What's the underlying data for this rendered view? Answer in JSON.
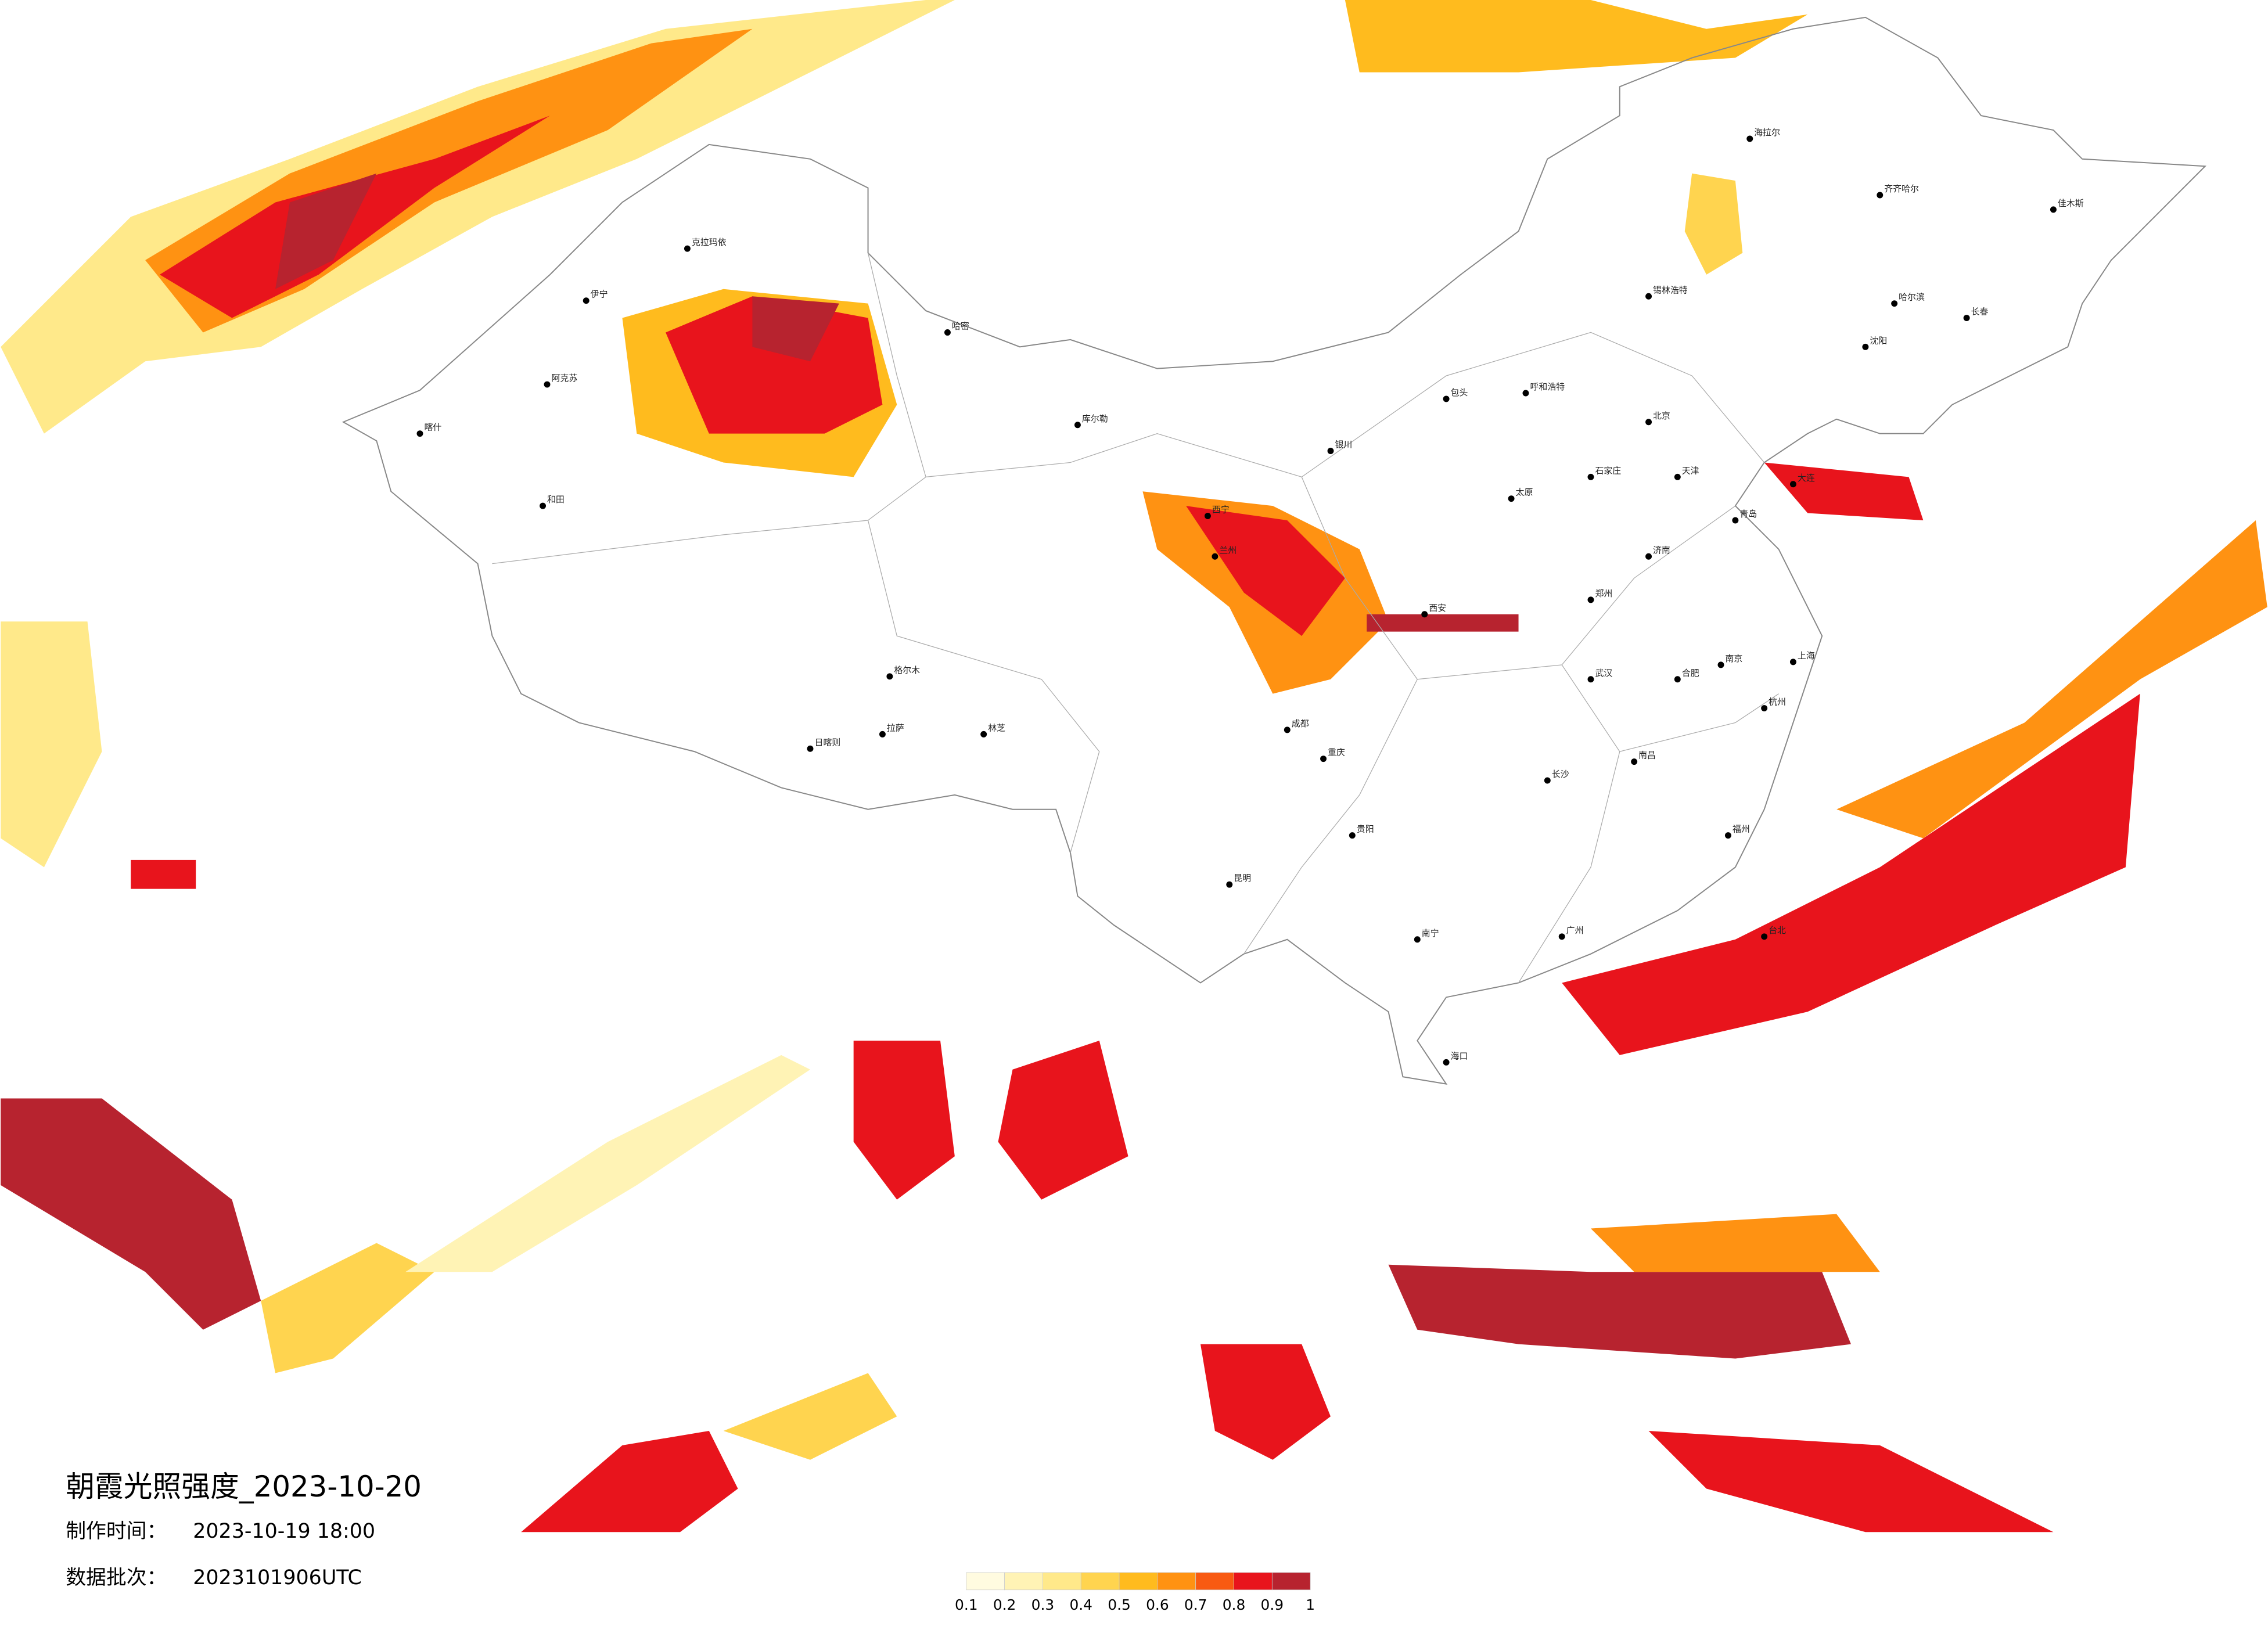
{
  "title": "朝霞光照强度_2023-10-20",
  "production_time": {
    "label": "制作时间：",
    "value": "2023-10-19 18:00"
  },
  "data_batch": {
    "label": "数据批次：",
    "value": "2023101906UTC"
  },
  "colorbar": {
    "ticks": [
      0.1,
      0.2,
      0.3,
      0.4,
      0.5,
      0.6,
      0.7,
      0.8,
      0.9,
      1
    ],
    "colors": [
      "#fffbe0",
      "#fff3b5",
      "#ffe98a",
      "#ffd44f",
      "#ffbb1e",
      "#ff9212",
      "#f85a12",
      "#e8141c",
      "#b7232f"
    ]
  },
  "cities": [
    "克拉玛依",
    "伊宁",
    "阿克苏",
    "和田",
    "喀什",
    "哈密",
    "库尔勒",
    "格尔木",
    "拉萨",
    "日喀则",
    "林芝",
    "西宁",
    "兰州",
    "银川",
    "呼和浩特",
    "包头",
    "北京",
    "天津",
    "石家庄",
    "太原",
    "济南",
    "青岛",
    "郑州",
    "西安",
    "成都",
    "重庆",
    "昆明",
    "贵阳",
    "南宁",
    "长沙",
    "武汉",
    "南昌",
    "合肥",
    "南京",
    "上海",
    "杭州",
    "福州",
    "广州",
    "海口",
    "哈尔滨",
    "长春",
    "沈阳",
    "大连",
    "齐齐哈尔",
    "海拉尔",
    "锡林浩特",
    "佳木斯",
    "台北"
  ]
}
